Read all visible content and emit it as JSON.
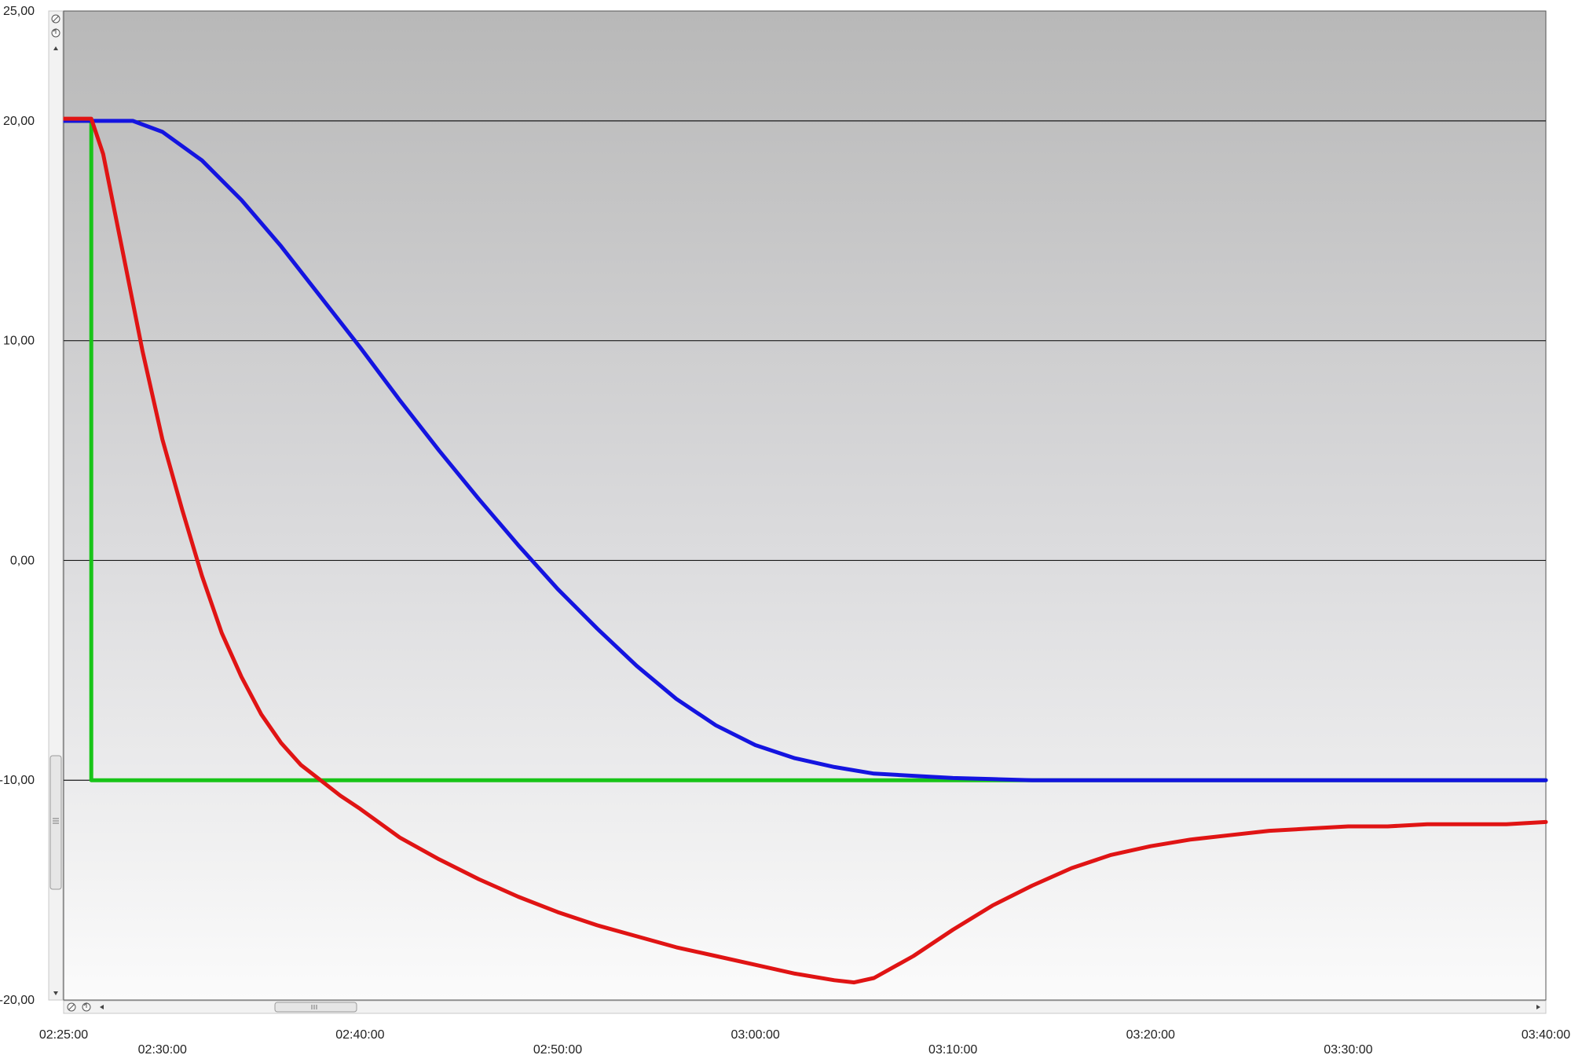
{
  "chart_data": {
    "type": "line",
    "title": "",
    "xlabel": "",
    "ylabel": "",
    "x_unit": "time (hh:mm:ss)",
    "xlim": [
      "02:25:00",
      "03:40:00"
    ],
    "ylim": [
      -20,
      25
    ],
    "grid": "horizontal",
    "y_ticks": [
      {
        "value": 25,
        "label": "25,00"
      },
      {
        "value": 20,
        "label": "20,00"
      },
      {
        "value": 10,
        "label": "10,00"
      },
      {
        "value": 0,
        "label": "0,00"
      },
      {
        "value": -10,
        "label": "-10,00"
      },
      {
        "value": -20,
        "label": "-20,00"
      }
    ],
    "x_ticks": [
      {
        "time": "02:25:00",
        "label": "02:25:00",
        "row": "upper"
      },
      {
        "time": "02:30:00",
        "label": "02:30:00",
        "row": "lower"
      },
      {
        "time": "02:40:00",
        "label": "02:40:00",
        "row": "upper"
      },
      {
        "time": "02:50:00",
        "label": "02:50:00",
        "row": "lower"
      },
      {
        "time": "03:00:00",
        "label": "03:00:00",
        "row": "upper"
      },
      {
        "time": "03:10:00",
        "label": "03:10:00",
        "row": "lower"
      },
      {
        "time": "03:20:00",
        "label": "03:20:00",
        "row": "upper"
      },
      {
        "time": "03:30:00",
        "label": "03:30:00",
        "row": "lower"
      },
      {
        "time": "03:40:00",
        "label": "03:40:00",
        "row": "upper"
      }
    ],
    "series": [
      {
        "color": "#18c418",
        "x": [
          "02:25:00",
          "02:26:24",
          "02:26:24",
          "03:40:00"
        ],
        "y": [
          20,
          20,
          -10,
          -10
        ]
      },
      {
        "color": "#1414e0",
        "x": [
          "02:25:00",
          "02:27:00",
          "02:28:30",
          "02:30:00",
          "02:32:00",
          "02:34:00",
          "02:36:00",
          "02:38:00",
          "02:40:00",
          "02:42:00",
          "02:44:00",
          "02:46:00",
          "02:48:00",
          "02:50:00",
          "02:52:00",
          "02:54:00",
          "02:56:00",
          "02:58:00",
          "03:00:00",
          "03:02:00",
          "03:04:00",
          "03:06:00",
          "03:08:00",
          "03:10:00",
          "03:12:00",
          "03:14:00",
          "03:16:00",
          "03:18:00",
          "03:20:00",
          "03:22:00",
          "03:24:00",
          "03:26:00",
          "03:30:00",
          "03:35:00",
          "03:40:00"
        ],
        "y": [
          20,
          20,
          20,
          19.5,
          18.2,
          16.4,
          14.3,
          12.0,
          9.7,
          7.3,
          5.0,
          2.8,
          0.7,
          -1.3,
          -3.1,
          -4.8,
          -6.3,
          -7.5,
          -8.4,
          -9.0,
          -9.4,
          -9.7,
          -9.8,
          -9.9,
          -9.95,
          -10,
          -10,
          -10,
          -10,
          -10,
          -10,
          -10,
          -10,
          -10,
          -10
        ]
      },
      {
        "color": "#e01414",
        "x": [
          "02:25:00",
          "02:26:24",
          "02:27:00",
          "02:28:00",
          "02:29:00",
          "02:30:00",
          "02:31:00",
          "02:32:00",
          "02:33:00",
          "02:34:00",
          "02:35:00",
          "02:36:00",
          "02:37:00",
          "02:38:00",
          "02:39:00",
          "02:40:00",
          "02:42:00",
          "02:44:00",
          "02:46:00",
          "02:48:00",
          "02:50:00",
          "02:52:00",
          "02:54:00",
          "02:56:00",
          "02:58:00",
          "03:00:00",
          "03:02:00",
          "03:04:00",
          "03:05:00",
          "03:06:00",
          "03:08:00",
          "03:10:00",
          "03:12:00",
          "03:14:00",
          "03:16:00",
          "03:18:00",
          "03:20:00",
          "03:22:00",
          "03:24:00",
          "03:26:00",
          "03:28:00",
          "03:30:00",
          "03:32:00",
          "03:34:00",
          "03:36:00",
          "03:38:00",
          "03:40:00"
        ],
        "y": [
          20.1,
          20.1,
          18.5,
          14,
          9.5,
          5.5,
          2.3,
          -0.7,
          -3.3,
          -5.3,
          -7.0,
          -8.3,
          -9.3,
          -10.0,
          -10.7,
          -11.3,
          -12.6,
          -13.6,
          -14.5,
          -15.3,
          -16.0,
          -16.6,
          -17.1,
          -17.6,
          -18.0,
          -18.4,
          -18.8,
          -19.1,
          -19.2,
          -19.0,
          -18.0,
          -16.8,
          -15.7,
          -14.8,
          -14.0,
          -13.4,
          -13.0,
          -12.7,
          -12.5,
          -12.3,
          -12.2,
          -12.1,
          -12.1,
          -12.0,
          -12.0,
          -12.0,
          -11.9
        ]
      }
    ]
  }
}
